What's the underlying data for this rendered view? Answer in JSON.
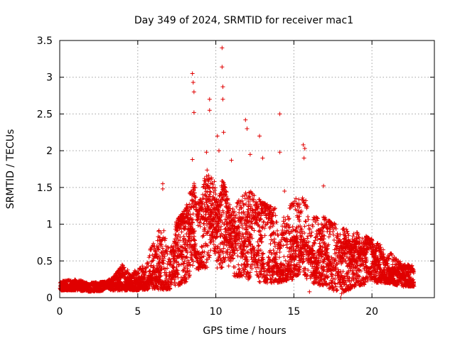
{
  "chart_data": {
    "type": "scatter",
    "title": "Day 349 of 2024, SRMTID for receiver mac1",
    "xlabel": "GPS time / hours",
    "ylabel": "SRMTID / TECUs",
    "xlim": [
      0,
      24
    ],
    "ylim": [
      0,
      3.5
    ],
    "x_ticks": [
      0,
      5,
      10,
      15,
      20
    ],
    "y_ticks": [
      0,
      0.5,
      1,
      1.5,
      2,
      2.5,
      3,
      3.5
    ],
    "x_tick_labels": [
      "0",
      "5",
      "10",
      "15",
      "20"
    ],
    "y_tick_labels": [
      "0",
      "0.5",
      "1",
      "1.5",
      "2",
      "2.5",
      "3",
      "3.5"
    ],
    "grid": true,
    "marker": "+",
    "color": "#e00000",
    "series": [
      {
        "name": "SRMTID",
        "x_range": [
          0.0,
          22.7
        ],
        "envelope": [
          {
            "x": 0.0,
            "low": 0.1,
            "high": 0.22
          },
          {
            "x": 1.0,
            "low": 0.1,
            "high": 0.25
          },
          {
            "x": 2.0,
            "low": 0.08,
            "high": 0.2
          },
          {
            "x": 3.0,
            "low": 0.1,
            "high": 0.22
          },
          {
            "x": 3.5,
            "low": 0.1,
            "high": 0.3
          },
          {
            "x": 4.0,
            "low": 0.1,
            "high": 0.45
          },
          {
            "x": 5.0,
            "low": 0.1,
            "high": 0.35
          },
          {
            "x": 6.0,
            "low": 0.12,
            "high": 0.75
          },
          {
            "x": 6.5,
            "low": 0.1,
            "high": 1.0
          },
          {
            "x": 7.0,
            "low": 0.1,
            "high": 0.8
          },
          {
            "x": 7.5,
            "low": 0.15,
            "high": 1.05
          },
          {
            "x": 8.0,
            "low": 0.2,
            "high": 1.2
          },
          {
            "x": 8.5,
            "low": 0.3,
            "high": 1.6
          },
          {
            "x": 9.0,
            "low": 0.4,
            "high": 1.4
          },
          {
            "x": 9.5,
            "low": 0.4,
            "high": 1.8
          },
          {
            "x": 10.0,
            "low": 0.4,
            "high": 1.6
          },
          {
            "x": 10.5,
            "low": 0.35,
            "high": 1.6
          },
          {
            "x": 11.0,
            "low": 0.3,
            "high": 1.2
          },
          {
            "x": 12.0,
            "low": 0.25,
            "high": 1.5
          },
          {
            "x": 13.0,
            "low": 0.2,
            "high": 1.3
          },
          {
            "x": 14.0,
            "low": 0.2,
            "high": 1.2
          },
          {
            "x": 15.0,
            "low": 0.25,
            "high": 1.3
          },
          {
            "x": 15.5,
            "low": 0.35,
            "high": 1.6
          },
          {
            "x": 16.0,
            "low": 0.2,
            "high": 1.1
          },
          {
            "x": 17.0,
            "low": 0.15,
            "high": 1.1
          },
          {
            "x": 18.0,
            "low": 0.05,
            "high": 0.95
          },
          {
            "x": 19.0,
            "low": 0.15,
            "high": 0.9
          },
          {
            "x": 20.0,
            "low": 0.2,
            "high": 0.8
          },
          {
            "x": 21.0,
            "low": 0.2,
            "high": 0.65
          },
          {
            "x": 22.0,
            "low": 0.15,
            "high": 0.45
          },
          {
            "x": 22.7,
            "low": 0.15,
            "high": 0.45
          }
        ],
        "notable_peaks": [
          {
            "x": 8.5,
            "y": 3.05
          },
          {
            "x": 8.55,
            "y": 2.93
          },
          {
            "x": 8.6,
            "y": 2.8
          },
          {
            "x": 8.6,
            "y": 2.52
          },
          {
            "x": 8.5,
            "y": 1.88
          },
          {
            "x": 9.4,
            "y": 1.98
          },
          {
            "x": 9.6,
            "y": 2.7
          },
          {
            "x": 9.6,
            "y": 2.55
          },
          {
            "x": 10.1,
            "y": 2.2
          },
          {
            "x": 10.2,
            "y": 2.0
          },
          {
            "x": 10.4,
            "y": 3.4
          },
          {
            "x": 10.4,
            "y": 3.14
          },
          {
            "x": 10.45,
            "y": 2.87
          },
          {
            "x": 10.45,
            "y": 2.7
          },
          {
            "x": 10.5,
            "y": 2.25
          },
          {
            "x": 11.0,
            "y": 1.87
          },
          {
            "x": 11.9,
            "y": 2.42
          },
          {
            "x": 12.0,
            "y": 2.3
          },
          {
            "x": 12.2,
            "y": 1.95
          },
          {
            "x": 12.8,
            "y": 2.2
          },
          {
            "x": 13.0,
            "y": 1.9
          },
          {
            "x": 14.1,
            "y": 2.5
          },
          {
            "x": 14.1,
            "y": 1.98
          },
          {
            "x": 14.4,
            "y": 1.45
          },
          {
            "x": 15.6,
            "y": 2.08
          },
          {
            "x": 15.7,
            "y": 2.03
          },
          {
            "x": 15.65,
            "y": 1.9
          },
          {
            "x": 6.6,
            "y": 1.55
          },
          {
            "x": 6.6,
            "y": 1.48
          },
          {
            "x": 16.9,
            "y": 1.52
          },
          {
            "x": 18.0,
            "y": 0.0
          },
          {
            "x": 16.0,
            "y": 0.08
          }
        ]
      }
    ]
  }
}
